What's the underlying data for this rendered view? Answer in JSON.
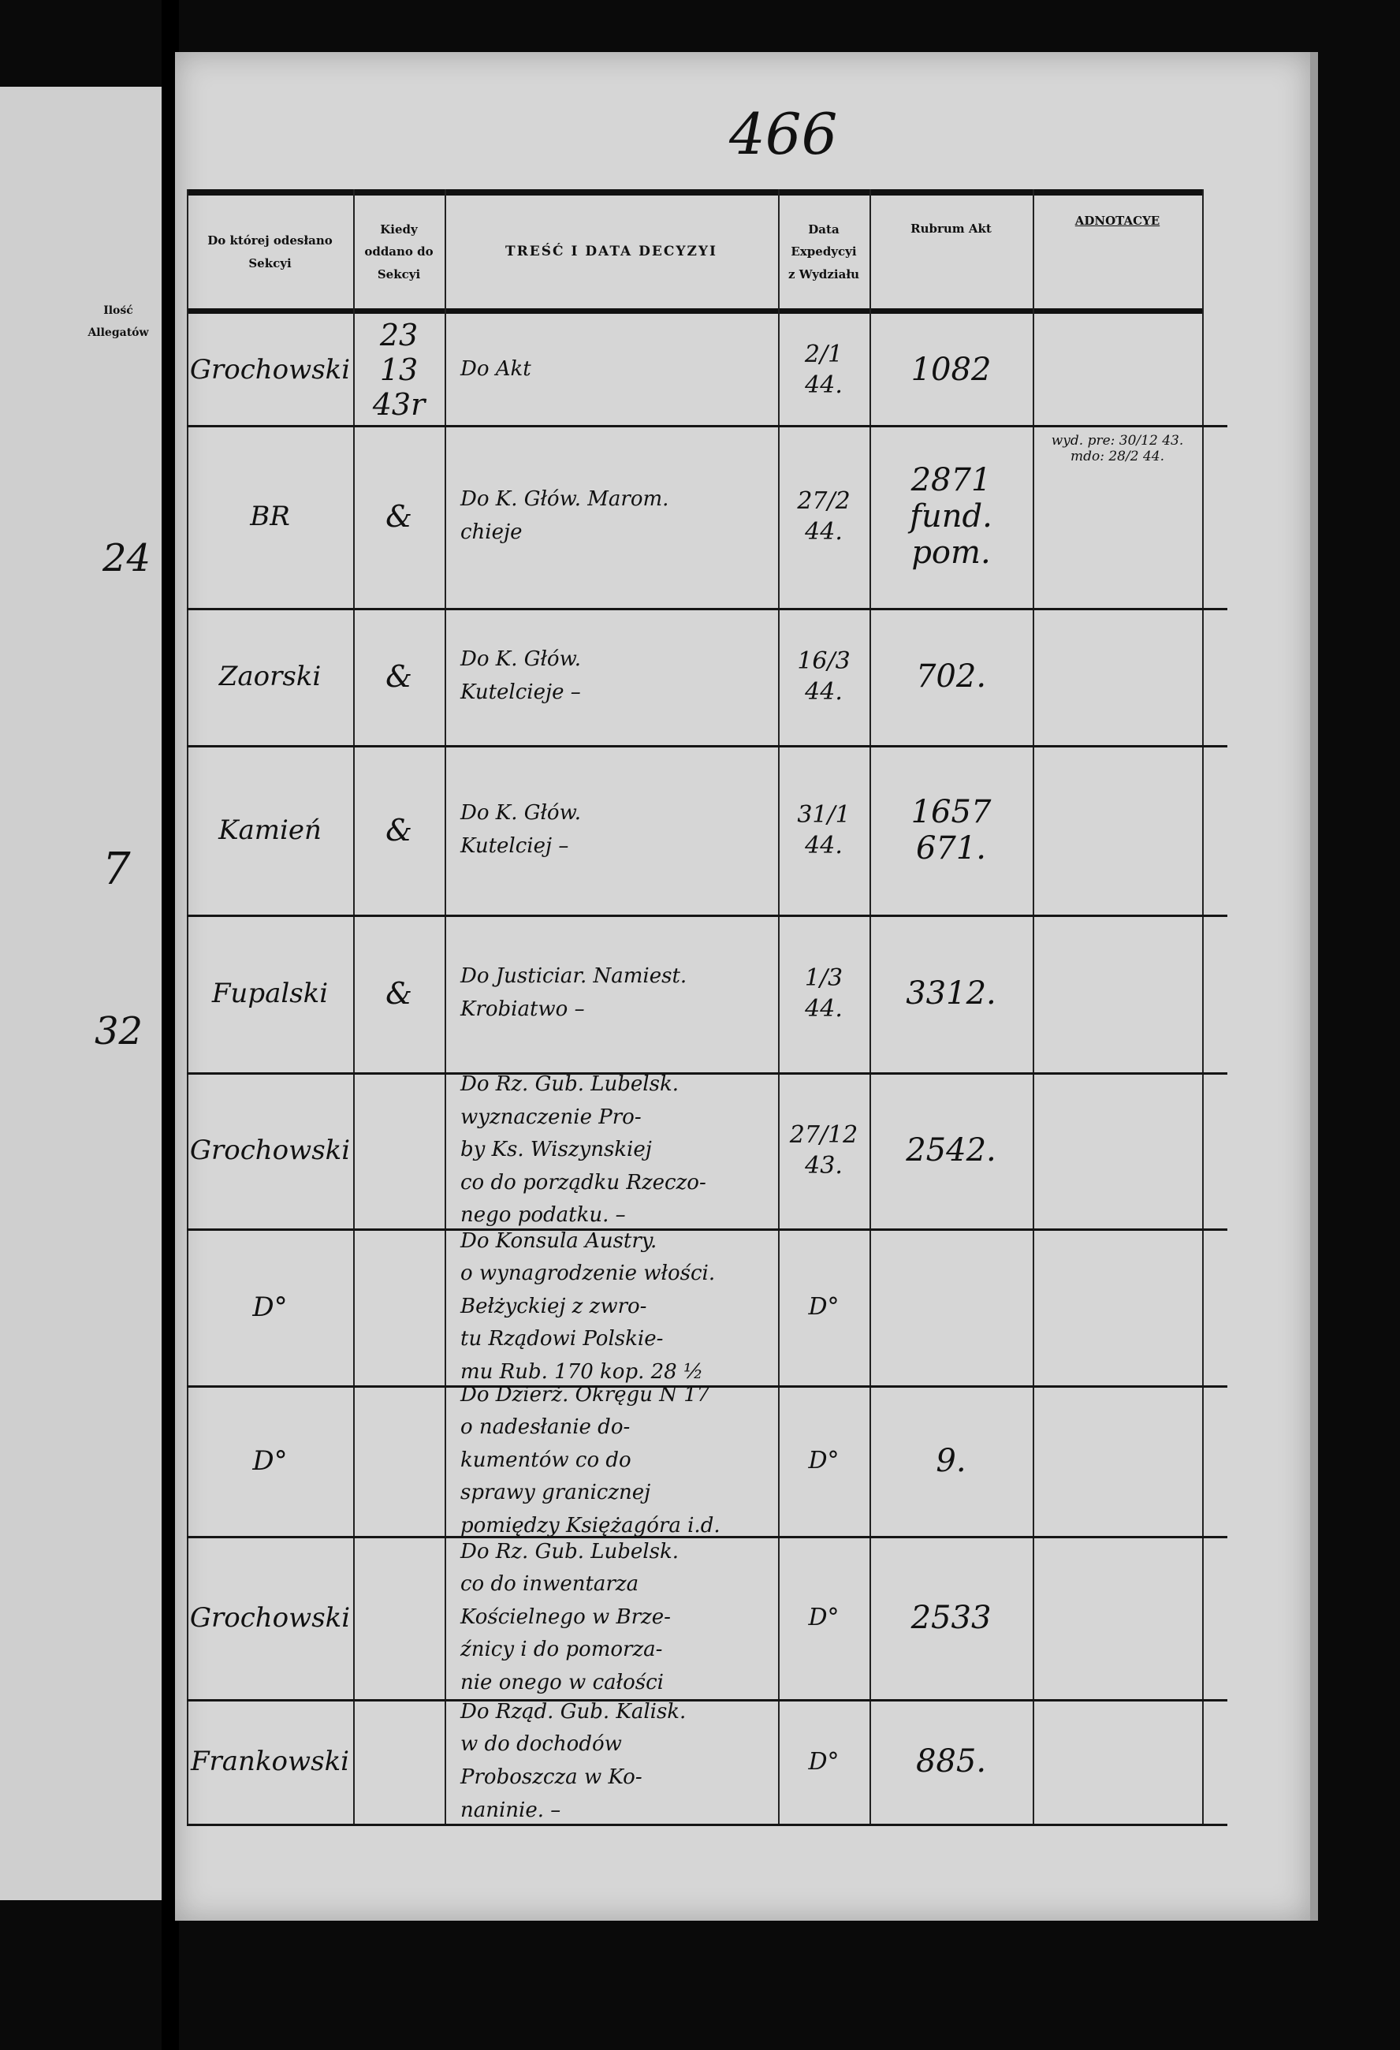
{
  "page_number": "466",
  "left_page": {
    "header": "Ilość Allegatów",
    "values": [
      "24",
      "7",
      "32"
    ]
  },
  "headers": {
    "section": "Do której odesłano\nSekcyi",
    "when": "Kiedy\noddano do\nSekcyi",
    "content": "TREŚĆ I DATA DECYZYI",
    "date": "Data\nExpedycyi\nz Wydziału",
    "rubrum": "Rubrum Akt",
    "annotations": "ADNOTACYE"
  },
  "rows": [
    {
      "section": "Grochowski",
      "when": "23\n13\n43r",
      "content": "Do Akt",
      "date": "2/1\n44.",
      "rubrum": "1082",
      "annotation": ""
    },
    {
      "section": "BR",
      "when": "&",
      "content": "Do K. Głów. Marom.\nchieje",
      "date": "27/2\n44.",
      "rubrum": "2871\nfund. pom.",
      "annotation": "wyd. pre: 30/12 43.\nmdo: 28/2 44."
    },
    {
      "section": "Zaorski",
      "when": "&",
      "content": "Do K. Głów.\nKutelcieje –",
      "date": "16/3\n44.",
      "rubrum": "702.",
      "annotation": ""
    },
    {
      "section": "Kamień",
      "when": "&",
      "content": "Do K. Głów.\nKutelciej –",
      "date": "31/1\n44.",
      "rubrum": "1657\n671.",
      "annotation": ""
    },
    {
      "section": "Fupalski",
      "when": "&",
      "content": "Do Justiciar. Namiest.\nKrobiatwo –",
      "date": "1/3\n44.",
      "rubrum": "3312.",
      "annotation": ""
    },
    {
      "section": "Grochowski",
      "when": "",
      "content": "Do Rz. Gub. Lubelsk.\nwyznaczenie Pro-\nby Ks. Wiszynskiej\nco do porządku Rzeczo-\nnego podatku. –",
      "date": "27/12\n43.",
      "rubrum": "2542.",
      "annotation": ""
    },
    {
      "section": "D°",
      "when": "",
      "content": "Do Konsula Austry.\no wynagrodzenie włości.\nBełżyckiej z zwro-\ntu Rządowi Polskie-\nmu Rub. 170 kop. 28 ½",
      "date": "D°",
      "rubrum": "",
      "annotation": ""
    },
    {
      "section": "D°",
      "when": "",
      "content": "Do Dzierż. Okręgu N 17\no nadesłanie do-\nkumentów co do\nsprawy granicznej\npomiędzy Księżagóra i.d.",
      "date": "D°",
      "rubrum": "9.",
      "annotation": ""
    },
    {
      "section": "Grochowski",
      "when": "",
      "content": "Do Rz. Gub. Lubelsk.\nco do inwentarza\nKościelnego w Brze-\nźnicy i do pomorza-\nnie onego w całości",
      "date": "D°",
      "rubrum": "2533",
      "annotation": ""
    },
    {
      "section": "Frankowski",
      "when": "",
      "content": "Do Rząd. Gub. Kalisk.\nw do dochodów\nProboszcza w Ko-\nnaninie. –",
      "date": "D°",
      "rubrum": "885.",
      "annotation": ""
    }
  ]
}
